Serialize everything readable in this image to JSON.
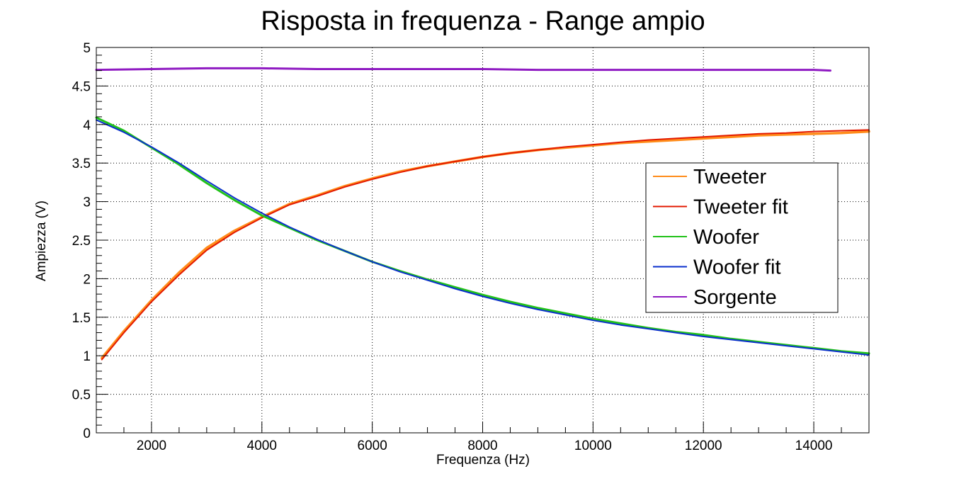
{
  "chart_data": {
    "type": "line",
    "title": "Risposta in frequenza - Range ampio",
    "xlabel": "Frequenza (Hz)",
    "ylabel": "Ampiezza (V)",
    "xlim": [
      1000,
      15000
    ],
    "ylim": [
      0,
      5
    ],
    "grid": true,
    "legend_position": "right",
    "x_ticks": [
      2000,
      4000,
      6000,
      8000,
      10000,
      12000,
      14000
    ],
    "y_ticks": [
      0,
      0.5,
      1,
      1.5,
      2,
      2.5,
      3,
      3.5,
      4,
      4.5,
      5
    ],
    "x_tick_labels": [
      "2000",
      "4000",
      "6000",
      "8000",
      "10000",
      "12000",
      "14000"
    ],
    "y_tick_labels": [
      "0",
      "0.5",
      "1",
      "1.5",
      "2",
      "2.5",
      "3",
      "3.5",
      "4",
      "4.5",
      "5"
    ],
    "series": [
      {
        "name": "Tweeter",
        "color": "#ff8c1a",
        "x": [
          1100,
          1500,
          2000,
          2500,
          3000,
          3500,
          4000,
          4500,
          5000,
          5500,
          6000,
          6500,
          7000,
          7500,
          8000,
          8500,
          9000,
          9500,
          10000,
          10500,
          11000,
          11500,
          12000,
          12500,
          13000,
          13500,
          14000,
          14500,
          15000
        ],
        "y": [
          0.97,
          1.32,
          1.72,
          2.08,
          2.4,
          2.62,
          2.8,
          2.97,
          3.08,
          3.2,
          3.3,
          3.39,
          3.46,
          3.52,
          3.58,
          3.63,
          3.67,
          3.7,
          3.73,
          3.76,
          3.78,
          3.8,
          3.82,
          3.84,
          3.86,
          3.87,
          3.88,
          3.89,
          3.91
        ]
      },
      {
        "name": "Tweeter fit",
        "color": "#e31a00",
        "x": [
          1100,
          1500,
          2000,
          2500,
          3000,
          3500,
          4000,
          4500,
          5000,
          5500,
          6000,
          6500,
          7000,
          7500,
          8000,
          8500,
          9000,
          9500,
          10000,
          10500,
          11000,
          11500,
          12000,
          12500,
          13000,
          13500,
          14000,
          14500,
          15000
        ],
        "y": [
          0.95,
          1.3,
          1.7,
          2.05,
          2.37,
          2.6,
          2.79,
          2.96,
          3.07,
          3.19,
          3.29,
          3.38,
          3.46,
          3.52,
          3.58,
          3.63,
          3.67,
          3.71,
          3.74,
          3.77,
          3.8,
          3.82,
          3.84,
          3.86,
          3.88,
          3.89,
          3.91,
          3.92,
          3.93
        ]
      },
      {
        "name": "Woofer",
        "color": "#22c21a",
        "x": [
          1000,
          1500,
          2000,
          2500,
          3000,
          3500,
          4000,
          4500,
          5000,
          5500,
          6000,
          6500,
          7000,
          7500,
          8000,
          8500,
          9000,
          9500,
          10000,
          10500,
          11000,
          11500,
          12000,
          12500,
          13000,
          13500,
          14000,
          14500,
          15000
        ],
        "y": [
          4.09,
          3.92,
          3.7,
          3.48,
          3.24,
          3.02,
          2.82,
          2.66,
          2.5,
          2.36,
          2.22,
          2.1,
          1.99,
          1.89,
          1.79,
          1.7,
          1.62,
          1.55,
          1.48,
          1.42,
          1.36,
          1.31,
          1.27,
          1.22,
          1.18,
          1.14,
          1.1,
          1.06,
          1.03
        ]
      },
      {
        "name": "Woofer fit",
        "color": "#0a2fcc",
        "x": [
          1000,
          1500,
          2000,
          2500,
          3000,
          3500,
          4000,
          4500,
          5000,
          5500,
          6000,
          6500,
          7000,
          7500,
          8000,
          8500,
          9000,
          9500,
          10000,
          10500,
          11000,
          11500,
          12000,
          12500,
          13000,
          13500,
          14000,
          14500,
          15000
        ],
        "y": [
          4.06,
          3.9,
          3.71,
          3.5,
          3.27,
          3.05,
          2.85,
          2.67,
          2.51,
          2.36,
          2.22,
          2.09,
          1.98,
          1.87,
          1.77,
          1.68,
          1.6,
          1.53,
          1.46,
          1.4,
          1.35,
          1.3,
          1.25,
          1.21,
          1.17,
          1.13,
          1.09,
          1.05,
          1.01
        ]
      },
      {
        "name": "Sorgente",
        "color": "#8f1ac2",
        "x": [
          1000,
          2000,
          3000,
          4000,
          5000,
          6000,
          7000,
          8000,
          9000,
          10000,
          11000,
          12000,
          13000,
          14000,
          14300
        ],
        "y": [
          4.71,
          4.72,
          4.73,
          4.73,
          4.72,
          4.72,
          4.72,
          4.72,
          4.71,
          4.71,
          4.71,
          4.71,
          4.71,
          4.71,
          4.7
        ]
      }
    ]
  }
}
